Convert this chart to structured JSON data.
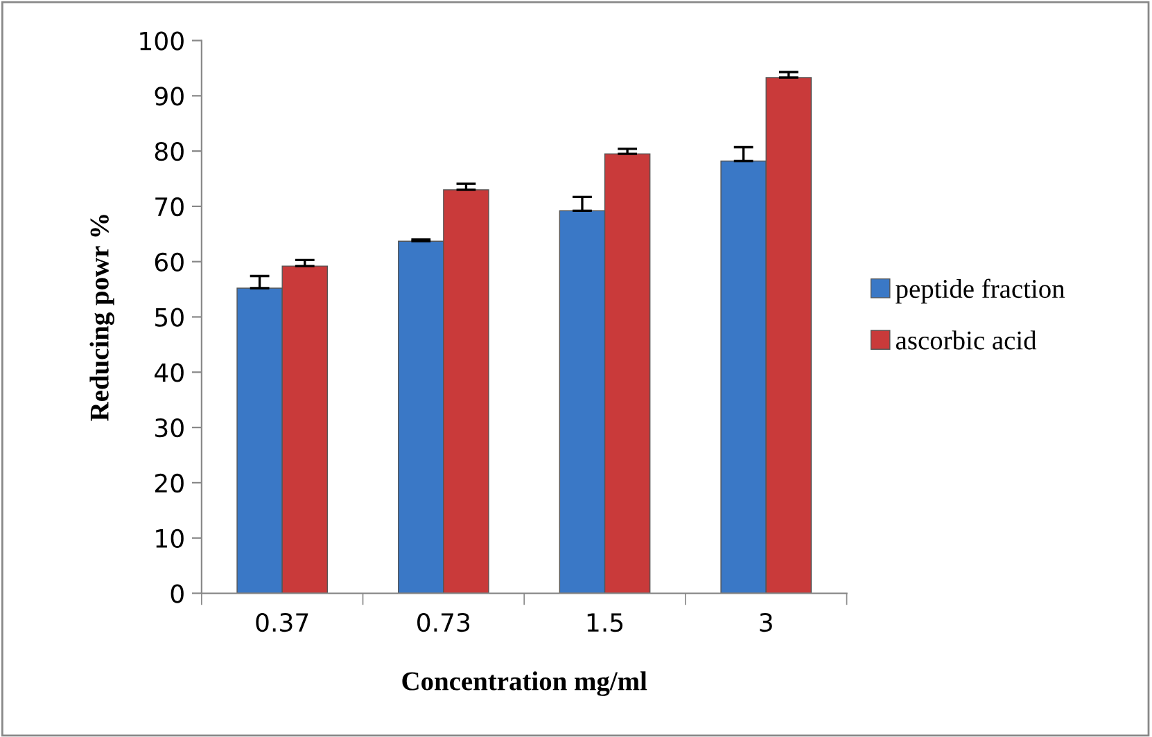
{
  "chart_data": {
    "type": "bar",
    "xlabel": "Concentration mg/ml",
    "ylabel": "Reducing powr %",
    "categories": [
      "0.37",
      "0.73",
      "1.5",
      "3"
    ],
    "series": [
      {
        "name": "peptide fraction",
        "color": "#3a78c6",
        "values": [
          55.2,
          63.7,
          69.2,
          78.2
        ],
        "errors": [
          [
            55.2,
            57.4
          ],
          [
            63.7,
            64.0
          ],
          [
            69.2,
            71.7
          ],
          [
            78.2,
            80.7
          ]
        ]
      },
      {
        "name": "ascorbic acid",
        "color": "#c93a3a",
        "values": [
          59.2,
          73.0,
          79.5,
          93.3
        ],
        "errors": [
          [
            59.2,
            60.3
          ],
          [
            73.0,
            74.1
          ],
          [
            79.5,
            80.4
          ],
          [
            93.3,
            94.3
          ]
        ]
      }
    ],
    "ylim": [
      0,
      100
    ],
    "yticks": [
      0,
      10,
      20,
      30,
      40,
      50,
      60,
      70,
      80,
      90,
      100
    ],
    "grid": false,
    "legend": "right"
  }
}
